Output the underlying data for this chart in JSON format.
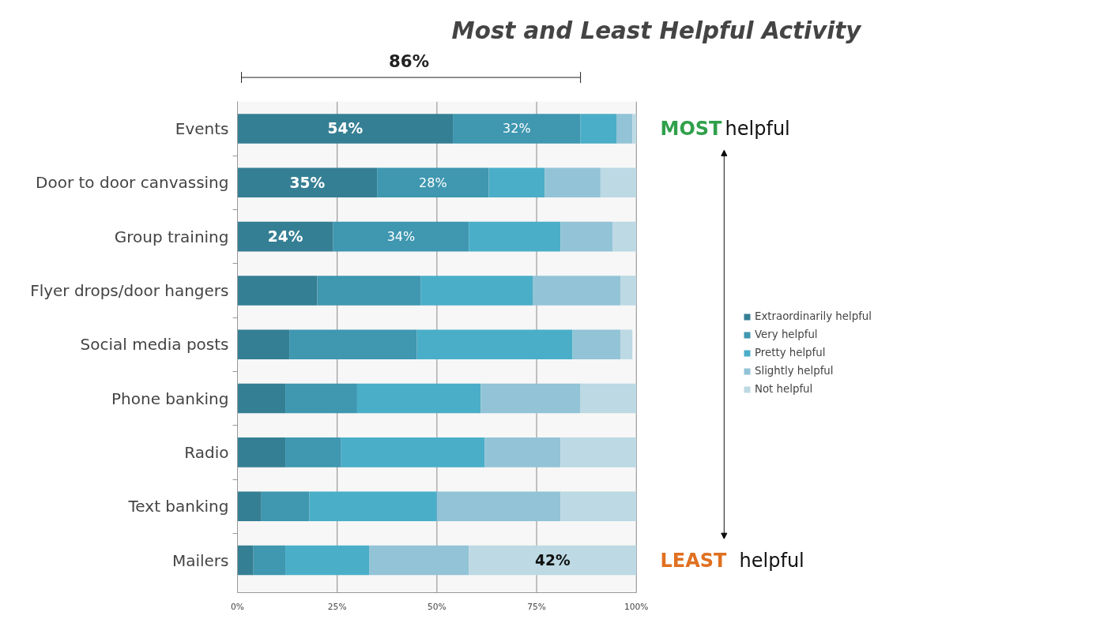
{
  "chart_data": {
    "type": "bar",
    "orientation": "horizontal",
    "stacked": true,
    "title": "Most and Least Helpful Activity",
    "categories": [
      "Events",
      "Door to door canvassing",
      "Group training",
      "Flyer drops/door hangers",
      "Social media posts",
      "Phone banking",
      "Radio",
      "Text banking",
      "Mailers"
    ],
    "series": [
      {
        "name": "Extraordinarily helpful",
        "color": "#357f94",
        "values": [
          54,
          35,
          24,
          20,
          13,
          12,
          12,
          6,
          4
        ],
        "value_labels": [
          "54%",
          "35%",
          "24%",
          null,
          null,
          null,
          null,
          null,
          null
        ]
      },
      {
        "name": "Very helpful",
        "color": "#3f97b0",
        "values": [
          32,
          28,
          34,
          26,
          32,
          18,
          14,
          12,
          8
        ],
        "value_labels": [
          "32%",
          "28%",
          "34%",
          null,
          null,
          null,
          null,
          null,
          null
        ]
      },
      {
        "name": "Pretty helpful",
        "color": "#4aaec8",
        "values": [
          9,
          14,
          23,
          28,
          39,
          31,
          36,
          32,
          21
        ]
      },
      {
        "name": "Slightly helpful",
        "color": "#92c3d6",
        "values": [
          4,
          14,
          13,
          22,
          12,
          25,
          19,
          31,
          25
        ]
      },
      {
        "name": "Not helpful",
        "color": "#bcd9e4",
        "values": [
          1,
          9,
          6,
          4,
          3,
          14,
          19,
          19,
          42
        ],
        "value_labels": [
          null,
          null,
          null,
          null,
          null,
          null,
          null,
          null,
          "42%"
        ]
      }
    ],
    "xlim": [
      0,
      100
    ],
    "xticks": [
      {
        "value": 0,
        "label": "0%"
      },
      {
        "value": 25,
        "label": "25%"
      },
      {
        "value": 50,
        "label": "50%"
      },
      {
        "value": 75,
        "label": "75%"
      },
      {
        "value": 100,
        "label": "100%"
      }
    ],
    "grid": "x",
    "legend": "right",
    "annotations": [
      "86%",
      "MOST helpful",
      "LEAST helpful"
    ]
  }
}
